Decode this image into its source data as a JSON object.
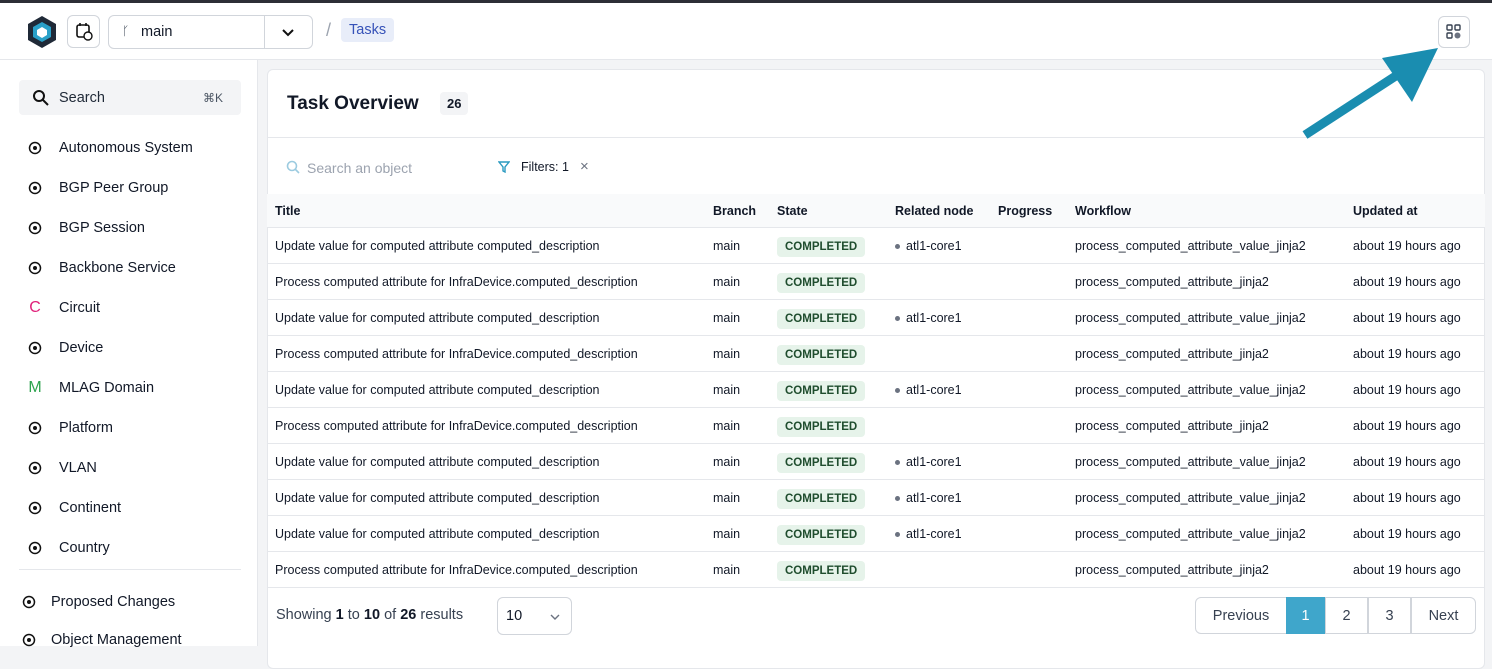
{
  "header": {
    "branch": "main",
    "separator": "/",
    "breadcrumb": "Tasks"
  },
  "sidebar": {
    "search": "Search",
    "shortcut": "⌘K",
    "items": [
      {
        "label": "Autonomous System"
      },
      {
        "label": "BGP Peer Group"
      },
      {
        "label": "BGP Session"
      },
      {
        "label": "Backbone Service"
      },
      {
        "label": "Circuit",
        "icon_letter": "C"
      },
      {
        "label": "Device"
      },
      {
        "label": "MLAG Domain",
        "icon_letter": "M"
      },
      {
        "label": "Platform"
      },
      {
        "label": "VLAN"
      },
      {
        "label": "Continent"
      },
      {
        "label": "Country"
      }
    ],
    "footer_items": [
      "Proposed Changes",
      "Object Management"
    ]
  },
  "main": {
    "title": "Task Overview",
    "count": 26,
    "search_placeholder": "Search an object",
    "filters": "Filters: 1",
    "clear": "×",
    "table": {
      "columns": [
        "Title",
        "Branch",
        "State",
        "Related node",
        "Progress",
        "Workflow",
        "Updated at"
      ],
      "rows": [
        {
          "title": "Update value for computed attribute computed_description",
          "branch": "main",
          "state": "COMPLETED",
          "node": "atl1-core1",
          "workflow": "process_computed_attribute_value_jinja2",
          "updated": "about 19 hours ago"
        },
        {
          "title": "Process computed attribute for InfraDevice.computed_description",
          "branch": "main",
          "state": "COMPLETED",
          "workflow": "process_computed_attribute_jinja2",
          "updated": "about 19 hours ago"
        },
        {
          "title": "Update value for computed attribute computed_description",
          "branch": "main",
          "state": "COMPLETED",
          "node": "atl1-core1",
          "workflow": "process_computed_attribute_value_jinja2",
          "updated": "about 19 hours ago"
        },
        {
          "title": "Process computed attribute for InfraDevice.computed_description",
          "branch": "main",
          "state": "COMPLETED",
          "workflow": "process_computed_attribute_jinja2",
          "updated": "about 19 hours ago"
        },
        {
          "title": "Update value for computed attribute computed_description",
          "branch": "main",
          "state": "COMPLETED",
          "node": "atl1-core1",
          "workflow": "process_computed_attribute_value_jinja2",
          "updated": "about 19 hours ago"
        },
        {
          "title": "Process computed attribute for InfraDevice.computed_description",
          "branch": "main",
          "state": "COMPLETED",
          "workflow": "process_computed_attribute_jinja2",
          "updated": "about 19 hours ago"
        },
        {
          "title": "Update value for computed attribute computed_description",
          "branch": "main",
          "state": "COMPLETED",
          "node": "atl1-core1",
          "workflow": "process_computed_attribute_value_jinja2",
          "updated": "about 19 hours ago"
        },
        {
          "title": "Update value for computed attribute computed_description",
          "branch": "main",
          "state": "COMPLETED",
          "node": "atl1-core1",
          "workflow": "process_computed_attribute_value_jinja2",
          "updated": "about 19 hours ago"
        },
        {
          "title": "Update value for computed attribute computed_description",
          "branch": "main",
          "state": "COMPLETED",
          "node": "atl1-core1",
          "workflow": "process_computed_attribute_value_jinja2",
          "updated": "about 19 hours ago"
        },
        {
          "title": "Process computed attribute for InfraDevice.computed_description",
          "branch": "main",
          "state": "COMPLETED",
          "workflow": "process_computed_attribute_jinja2",
          "updated": "about 19 hours ago"
        }
      ]
    },
    "footer": {
      "showing": [
        "Showing",
        1,
        "to",
        10,
        "of",
        26,
        "results"
      ],
      "page_size": 10,
      "pagination": {
        "previous": "Previous",
        "pages": [
          1,
          2,
          3
        ],
        "active": 1,
        "next": "Next"
      }
    }
  }
}
